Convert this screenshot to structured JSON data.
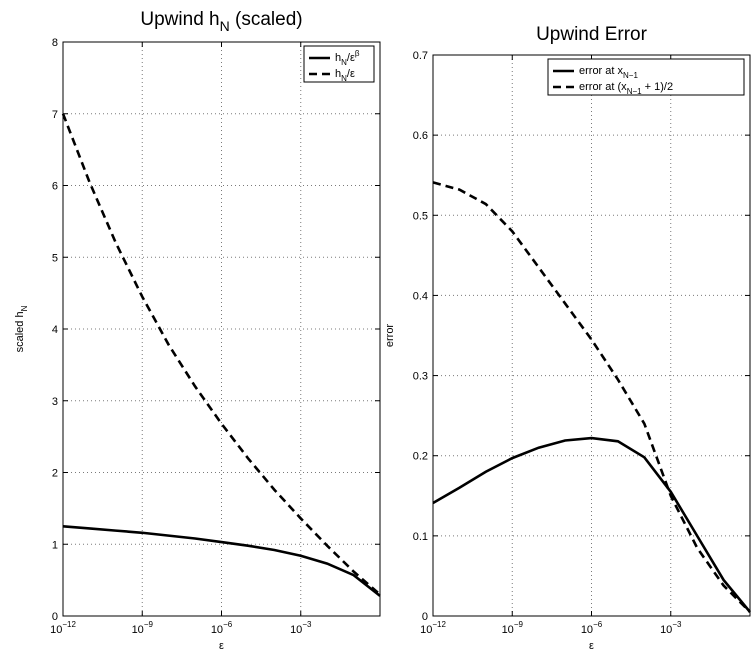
{
  "chart_data": [
    {
      "type": "line",
      "title": "Upwind h_N (scaled)",
      "title_parts": {
        "base": "Upwind h",
        "sub": "N",
        "rest": " (scaled)"
      },
      "xlabel": "ε",
      "ylabel": "scaled h_N",
      "ylabel_parts": {
        "base": "scaled h",
        "sub": "N"
      },
      "xscale": "log",
      "xlim": [
        1e-12,
        1
      ],
      "ylim": [
        0,
        8
      ],
      "grid": true,
      "legend_position": "top-right",
      "x_ticks": [
        {
          "value": 1e-12,
          "label_base": "10",
          "label_exp": "−12"
        },
        {
          "value": 1e-09,
          "label_base": "10",
          "label_exp": "−9"
        },
        {
          "value": 1e-06,
          "label_base": "10",
          "label_exp": "−6"
        },
        {
          "value": 0.001,
          "label_base": "10",
          "label_exp": "−3"
        }
      ],
      "y_ticks": [
        0,
        1,
        2,
        3,
        4,
        5,
        6,
        7,
        8
      ],
      "series": [
        {
          "name": "h_N/ε^β",
          "legend_parts": {
            "a": "h",
            "sub": "N",
            "b": "/ε",
            "sup": "β"
          },
          "style": "solid",
          "x": [
            1e-12,
            1e-11,
            1e-10,
            1e-09,
            1e-08,
            1e-07,
            1e-06,
            1e-05,
            0.0001,
            0.001,
            0.01,
            0.1,
            1
          ],
          "y": [
            1.25,
            1.22,
            1.19,
            1.16,
            1.12,
            1.08,
            1.03,
            0.98,
            0.92,
            0.84,
            0.73,
            0.57,
            0.28
          ]
        },
        {
          "name": "h_N/ε",
          "legend_parts": {
            "a": "h",
            "sub": "N",
            "b": "/ε",
            "sup": ""
          },
          "style": "dashed",
          "x": [
            1e-12,
            1e-11,
            1e-10,
            1e-09,
            1e-08,
            1e-07,
            1e-06,
            1e-05,
            0.0001,
            0.001,
            0.01,
            0.1,
            1
          ],
          "y": [
            7.0,
            6.05,
            5.2,
            4.45,
            3.78,
            3.2,
            2.68,
            2.2,
            1.76,
            1.36,
            0.98,
            0.62,
            0.3
          ]
        }
      ]
    },
    {
      "type": "line",
      "title": "Upwind Error",
      "xlabel": "ε",
      "ylabel": "error",
      "xscale": "log",
      "xlim": [
        1e-12,
        1
      ],
      "ylim": [
        0,
        0.7
      ],
      "grid": true,
      "legend_position": "top-right",
      "x_ticks": [
        {
          "value": 1e-12,
          "label_base": "10",
          "label_exp": "−12"
        },
        {
          "value": 1e-09,
          "label_base": "10",
          "label_exp": "−9"
        },
        {
          "value": 1e-06,
          "label_base": "10",
          "label_exp": "−6"
        },
        {
          "value": 0.001,
          "label_base": "10",
          "label_exp": "−3"
        }
      ],
      "y_ticks": [
        "0",
        "0.1",
        "0.2",
        "0.3",
        "0.4",
        "0.5",
        "0.6",
        "0.7"
      ],
      "y_tick_values": [
        0,
        0.1,
        0.2,
        0.3,
        0.4,
        0.5,
        0.6,
        0.7
      ],
      "series": [
        {
          "name": "error at x_{N−1}",
          "legend_parts": {
            "a": "error at x",
            "sub": "N−1",
            "b": ""
          },
          "style": "solid",
          "x": [
            1e-12,
            1e-11,
            1e-10,
            1e-09,
            1e-08,
            1e-07,
            1e-06,
            1e-05,
            0.0001,
            0.001,
            0.01,
            0.1,
            1
          ],
          "y": [
            0.141,
            0.16,
            0.18,
            0.197,
            0.21,
            0.219,
            0.222,
            0.218,
            0.198,
            0.155,
            0.1,
            0.045,
            0.005
          ]
        },
        {
          "name": "error at (x_{N−1} + 1)/2",
          "legend_parts": {
            "a": "error at (x",
            "sub": "N−1",
            "b": " + 1)/2"
          },
          "style": "dashed",
          "x": [
            1e-12,
            1e-11,
            1e-10,
            1e-09,
            1e-08,
            1e-07,
            1e-06,
            1e-05,
            0.0001,
            0.001,
            0.01,
            0.1,
            1
          ],
          "y": [
            0.541,
            0.532,
            0.514,
            0.48,
            0.435,
            0.39,
            0.345,
            0.295,
            0.24,
            0.15,
            0.085,
            0.038,
            0.005
          ]
        }
      ]
    }
  ]
}
